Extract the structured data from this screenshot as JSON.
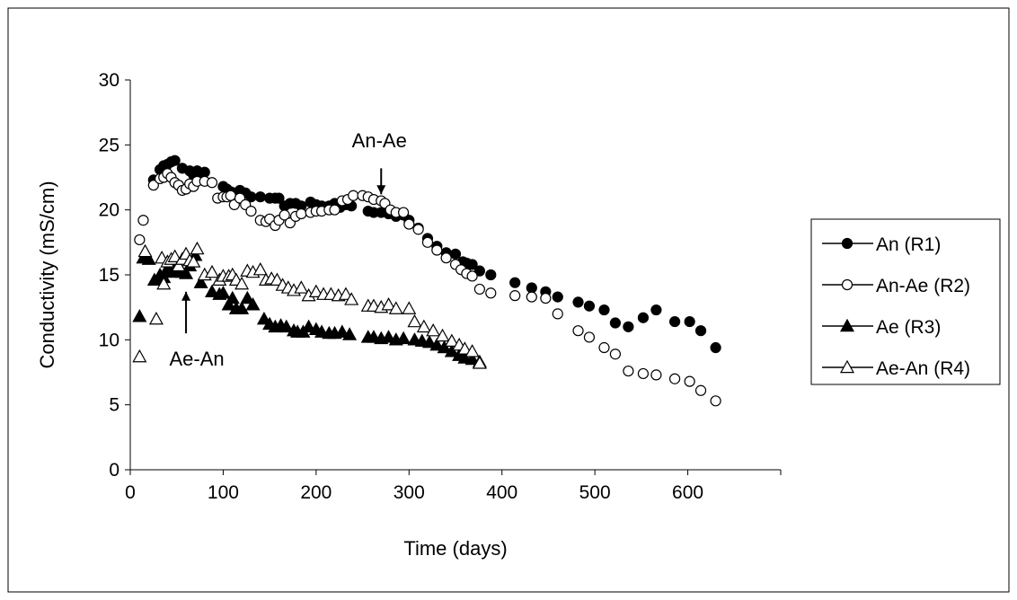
{
  "chart_data": {
    "type": "scatter",
    "xlabel": "Time (days)",
    "ylabel": "Conductivity (mS/cm)",
    "xlim": [
      0,
      700
    ],
    "ylim": [
      0,
      30
    ],
    "x_ticks": [
      0,
      100,
      200,
      300,
      400,
      500,
      600
    ],
    "y_ticks": [
      0,
      5,
      10,
      15,
      20,
      25,
      30
    ],
    "grid": false,
    "legend_position": "right",
    "series": [
      {
        "name": "An (R1)",
        "marker": "filled-circle",
        "x": [
          25,
          32,
          36,
          40,
          44,
          48,
          52,
          56,
          60,
          64,
          68,
          72,
          76,
          80,
          100,
          104,
          108,
          112,
          118,
          124,
          130,
          140,
          150,
          156,
          160,
          166,
          172,
          178,
          184,
          194,
          200,
          206,
          214,
          220,
          226,
          232,
          238,
          256,
          262,
          270,
          278,
          286,
          294,
          300,
          310,
          320,
          330,
          340,
          350,
          358,
          362,
          368,
          376,
          388,
          414,
          432,
          447,
          460,
          482,
          494,
          510,
          522,
          536,
          552,
          566,
          586,
          602,
          614,
          630
        ],
        "y": [
          22.3,
          23.1,
          23.4,
          23.5,
          23.7,
          23.8,
          21.9,
          23.2,
          21.6,
          23.0,
          22.7,
          23.0,
          22.8,
          22.9,
          21.8,
          21.6,
          21.4,
          21.3,
          21.5,
          21.3,
          21.0,
          21.0,
          20.9,
          20.9,
          20.9,
          20.3,
          20.5,
          20.5,
          20.3,
          20.6,
          20.4,
          20.3,
          20.3,
          20.5,
          20.2,
          20.4,
          20.3,
          19.9,
          19.8,
          19.8,
          19.7,
          19.5,
          19.6,
          19.2,
          18.6,
          17.8,
          17.2,
          16.7,
          16.6,
          16.0,
          15.9,
          15.8,
          15.3,
          15.0,
          14.4,
          14.0,
          13.7,
          13.3,
          12.9,
          12.6,
          12.3,
          11.3,
          11.0,
          11.7,
          12.3,
          11.4,
          11.4,
          10.7,
          9.4
        ]
      },
      {
        "name": "An-Ae (R2)",
        "marker": "open-circle",
        "x": [
          10,
          14,
          25,
          32,
          36,
          40,
          44,
          48,
          52,
          56,
          60,
          64,
          68,
          72,
          80,
          88,
          94,
          100,
          104,
          108,
          112,
          118,
          124,
          130,
          140,
          146,
          150,
          156,
          160,
          166,
          172,
          178,
          184,
          194,
          200,
          206,
          214,
          220,
          228,
          234,
          240,
          250,
          256,
          262,
          270,
          274,
          280,
          286,
          294,
          300,
          310,
          320,
          330,
          340,
          350,
          356,
          362,
          368,
          376,
          388,
          414,
          432,
          447,
          460,
          482,
          494,
          510,
          522,
          536,
          552,
          566,
          586,
          602,
          614,
          630
        ],
        "y": [
          17.7,
          19.2,
          21.9,
          22.4,
          22.5,
          22.8,
          22.5,
          22.1,
          21.9,
          21.5,
          21.6,
          22.0,
          21.8,
          22.2,
          22.2,
          22.1,
          20.9,
          21.0,
          21.0,
          21.1,
          20.4,
          20.9,
          20.4,
          19.9,
          19.2,
          19.1,
          19.3,
          18.8,
          19.2,
          19.6,
          19.0,
          19.5,
          19.7,
          19.8,
          19.9,
          19.9,
          20.0,
          20.0,
          20.7,
          20.8,
          21.1,
          21.1,
          21.0,
          20.8,
          20.7,
          20.5,
          20.0,
          19.8,
          19.8,
          18.9,
          18.5,
          17.5,
          16.9,
          16.3,
          15.8,
          15.4,
          15.1,
          14.9,
          13.9,
          13.6,
          13.4,
          13.3,
          13.2,
          12.0,
          10.7,
          10.2,
          9.4,
          8.9,
          7.6,
          7.4,
          7.3,
          7.0,
          6.8,
          6.1,
          5.3
        ]
      },
      {
        "name": "Ae (R3)",
        "marker": "filled-triangle",
        "x": [
          10,
          14,
          20,
          26,
          32,
          36,
          40,
          44,
          48,
          52,
          56,
          60,
          64,
          70,
          76,
          88,
          96,
          100,
          106,
          110,
          114,
          120,
          126,
          132,
          144,
          150,
          156,
          162,
          168,
          176,
          180,
          186,
          192,
          200,
          206,
          214,
          220,
          228,
          236,
          256,
          262,
          270,
          278,
          286,
          294,
          306,
          314,
          322,
          330,
          338,
          346,
          354,
          360,
          368,
          376
        ],
        "y": [
          11.8,
          16.3,
          16.2,
          14.6,
          15.0,
          14.8,
          15.5,
          15.2,
          15.4,
          15.4,
          15.2,
          15.1,
          15.7,
          16.5,
          14.4,
          13.7,
          13.5,
          13.6,
          12.7,
          13.2,
          12.4,
          12.4,
          13.2,
          12.7,
          11.6,
          11.2,
          11.0,
          11.1,
          11.0,
          10.7,
          10.6,
          10.6,
          11.0,
          10.8,
          10.6,
          10.5,
          10.5,
          10.6,
          10.4,
          10.2,
          10.2,
          10.1,
          10.2,
          10.0,
          10.1,
          10.0,
          9.9,
          9.8,
          9.6,
          9.4,
          9.1,
          8.8,
          8.6,
          8.5,
          8.3
        ]
      },
      {
        "name": "Ae-An (R4)",
        "marker": "open-triangle",
        "x": [
          10,
          16,
          28,
          34,
          36,
          40,
          44,
          48,
          52,
          56,
          60,
          64,
          68,
          72,
          80,
          88,
          96,
          100,
          106,
          110,
          114,
          120,
          126,
          132,
          140,
          146,
          152,
          158,
          164,
          170,
          176,
          184,
          192,
          200,
          208,
          216,
          224,
          232,
          238,
          256,
          262,
          270,
          278,
          286,
          300,
          306,
          316,
          326,
          336,
          346,
          354,
          360,
          368,
          376
        ],
        "y": [
          8.7,
          16.8,
          11.6,
          16.3,
          14.3,
          16.0,
          16.2,
          16.4,
          15.7,
          16.2,
          16.6,
          16.1,
          16.0,
          17.0,
          15.0,
          15.2,
          14.6,
          14.9,
          14.9,
          15.0,
          14.6,
          14.3,
          15.3,
          15.2,
          15.4,
          14.6,
          14.7,
          14.6,
          14.2,
          14.0,
          13.8,
          14.0,
          13.4,
          13.7,
          13.5,
          13.5,
          13.4,
          13.5,
          13.1,
          12.6,
          12.6,
          12.5,
          12.7,
          12.4,
          12.4,
          11.4,
          11.0,
          10.7,
          10.3,
          9.9,
          9.6,
          9.3,
          9.1,
          8.2
        ]
      }
    ],
    "annotations": [
      {
        "text": "An-Ae",
        "x": 270,
        "y": 24.8,
        "arrow_from_y": 23.2,
        "arrow_to_y": 21.2
      },
      {
        "text": "Ae-An",
        "x": 60,
        "y": 9.0,
        "arrow_from_y": 10.5,
        "arrow_to_y": 13.7
      }
    ]
  }
}
